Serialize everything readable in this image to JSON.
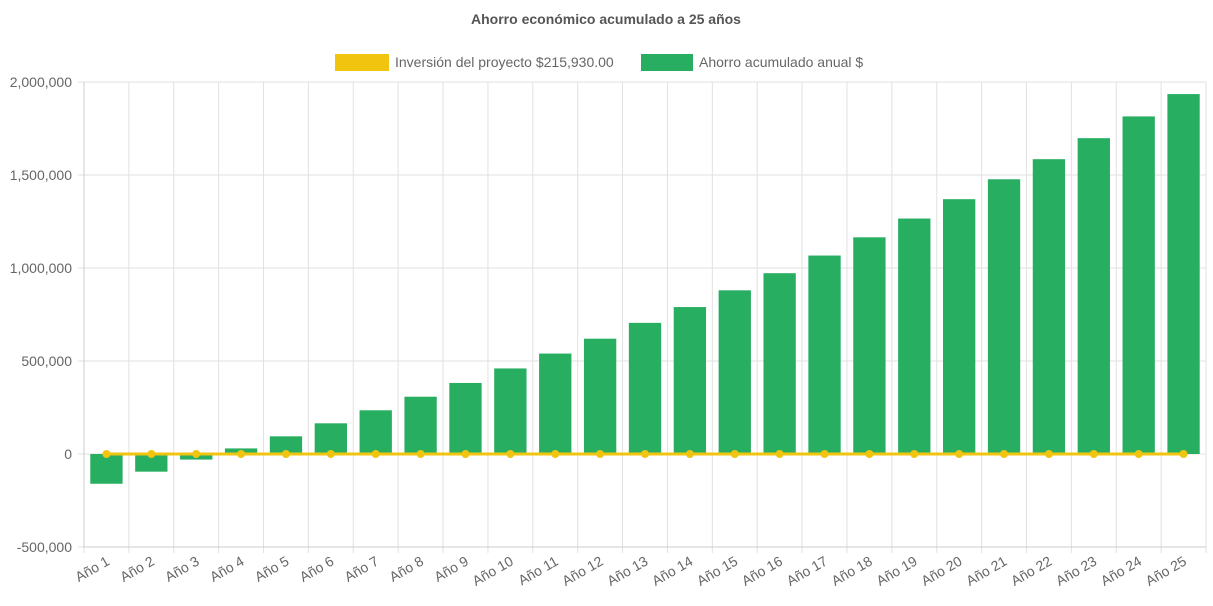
{
  "chart_data": {
    "type": "bar",
    "title": "Ahorro económico acumulado a 25 años",
    "categories": [
      "Año 1",
      "Año 2",
      "Año 3",
      "Año 4",
      "Año 5",
      "Año 6",
      "Año 7",
      "Año 8",
      "Año 9",
      "Año 10",
      "Año 11",
      "Año 12",
      "Año 13",
      "Año 14",
      "Año 15",
      "Año 16",
      "Año 17",
      "Año 18",
      "Año 19",
      "Año 20",
      "Año 21",
      "Año 22",
      "Año 23",
      "Año 24",
      "Año 25"
    ],
    "series": [
      {
        "name": "Ahorro acumulado anual $",
        "type": "bar",
        "color": "#27AE60",
        "values": [
          -160000,
          -95000,
          -30000,
          30000,
          95000,
          165000,
          235000,
          308000,
          382000,
          460000,
          540000,
          620000,
          705000,
          790000,
          880000,
          972000,
          1067000,
          1165000,
          1266000,
          1370000,
          1477000,
          1585000,
          1698000,
          1815000,
          1935000
        ]
      },
      {
        "name": "Inversión del proyecto $215,930.00",
        "type": "line",
        "color": "#F1C40F",
        "values": [
          0,
          0,
          0,
          0,
          0,
          0,
          0,
          0,
          0,
          0,
          0,
          0,
          0,
          0,
          0,
          0,
          0,
          0,
          0,
          0,
          0,
          0,
          0,
          0,
          0
        ]
      }
    ],
    "legend": [
      "Inversión del proyecto $215,930.00",
      "Ahorro acumulado anual $"
    ],
    "legend_position": "top",
    "ylim": [
      -500000,
      2000000
    ],
    "y_ticks": [
      -500000,
      0,
      500000,
      1000000,
      1500000,
      2000000
    ],
    "y_tick_labels": [
      "-500,000",
      "0",
      "500,000",
      "1,000,000",
      "1,500,000",
      "2,000,000"
    ],
    "grid": true,
    "xlabel": "",
    "ylabel": ""
  }
}
